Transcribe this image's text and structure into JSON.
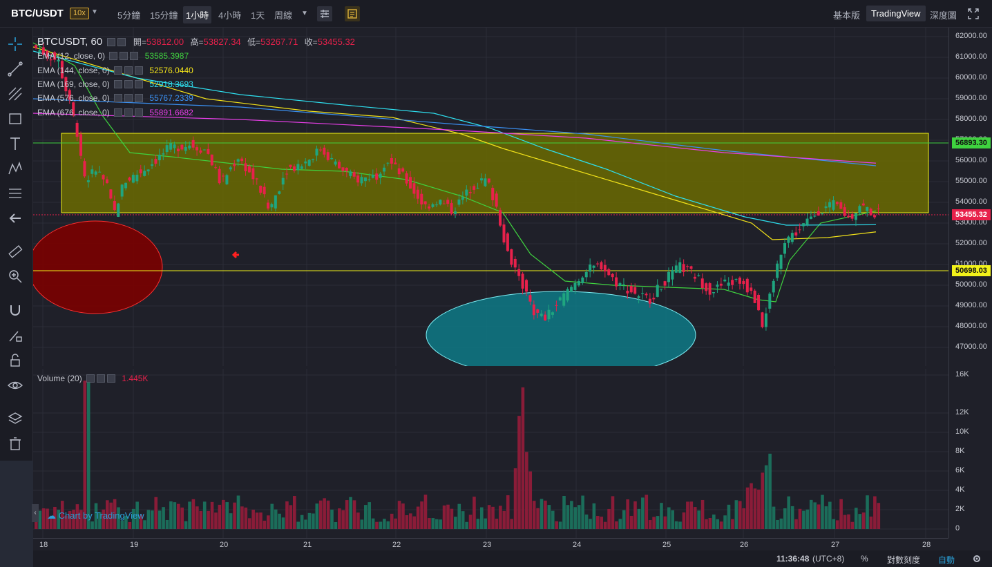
{
  "topbar": {
    "symbol": "BTC/USDT",
    "leverage": "10x",
    "intervals": [
      "5分鐘",
      "15分鐘",
      "1小時",
      "4小時",
      "1天",
      "周線"
    ],
    "active_interval": "1小時",
    "views": [
      "基本版",
      "TradingView",
      "深度圖"
    ],
    "active_view": "TradingView"
  },
  "legend": {
    "title": "BTCUSDT, 60",
    "open_label": "開=",
    "open": "53812.00",
    "high_label": "高=",
    "high": "53827.34",
    "low_label": "低=",
    "low": "53267.71",
    "close_label": "收=",
    "close": "53455.32",
    "emas": [
      {
        "label": "EMA (12, close, 0)",
        "value": "53585.3987",
        "color": "#3fd23f"
      },
      {
        "label": "EMA (144, close, 0)",
        "value": "52576.0440",
        "color": "#f2e21a"
      },
      {
        "label": "EMA (169, close, 0)",
        "value": "52918.3693",
        "color": "#2ee0f0"
      },
      {
        "label": "EMA (576, close, 0)",
        "value": "55767.2339",
        "color": "#3a8ff0"
      },
      {
        "label": "EMA (676, close, 0)",
        "value": "55891.6682",
        "color": "#e83ee8"
      }
    ],
    "volume_label": "Volume (20)",
    "volume_value": "1.445K"
  },
  "price_scale": {
    "labels": [
      "62000.00",
      "61000.00",
      "60000.00",
      "59000.00",
      "58000.00",
      "57000.00",
      "56000.00",
      "55000.00",
      "54000.00",
      "53000.00",
      "52000.00",
      "51000.00",
      "50000.00",
      "49000.00",
      "48000.00",
      "47000.00"
    ],
    "tag_green": "56893.30",
    "tag_last": "53455.32",
    "tag_yellow": "50698.03"
  },
  "volume_scale": {
    "labels": [
      "16K",
      "12K",
      "10K",
      "8K",
      "6K",
      "4K",
      "2K",
      "0"
    ]
  },
  "time_axis": {
    "labels": [
      "18",
      "19",
      "20",
      "21",
      "22",
      "23",
      "24",
      "25",
      "26",
      "27",
      "28"
    ]
  },
  "status": {
    "time": "11:36:48",
    "tz": "(UTC+8)",
    "percent": "%",
    "log": "對數刻度",
    "auto": "自動"
  },
  "watermark": "Chart by TradingView",
  "colors": {
    "up": "#1fa57f",
    "down": "#e8214b",
    "zone_fill": "#6e6e00",
    "zone_border": "#f2f21a",
    "ellipse_red": "#8b0000",
    "ellipse_cyan": "#0e7a86"
  }
}
